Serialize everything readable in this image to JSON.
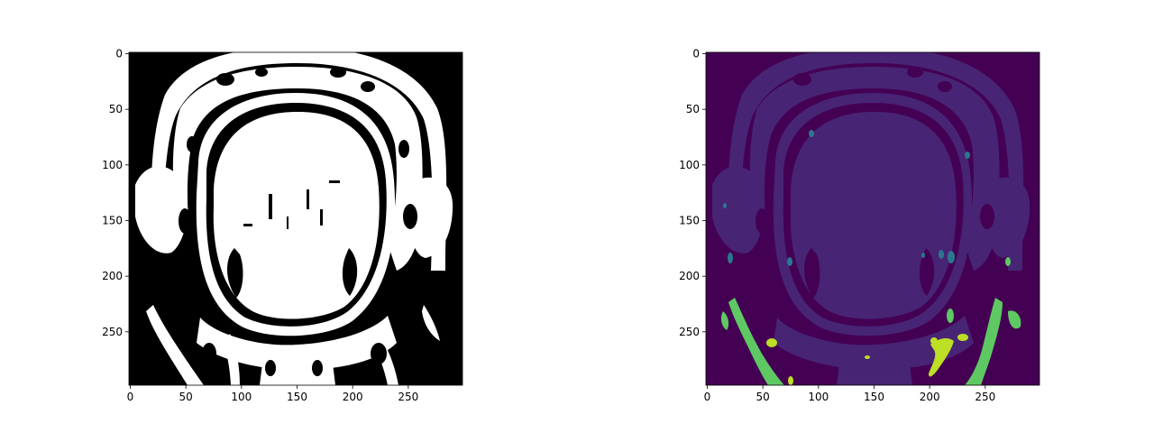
{
  "figure": {
    "background": "#ffffff"
  },
  "chart_data": [
    {
      "type": "heatmap",
      "colormap": "gray",
      "colors": {
        "low": "#000000",
        "high": "#ffffff"
      },
      "image_size": [
        300,
        300
      ],
      "xlim": [
        0,
        300
      ],
      "ylim": [
        300,
        0
      ],
      "y_inverted": true,
      "grid": false,
      "xticks": [
        0,
        50,
        100,
        150,
        200,
        250
      ],
      "yticks": [
        0,
        50,
        100,
        150,
        200,
        250
      ],
      "xlabel": "",
      "ylabel": "",
      "title": ""
    },
    {
      "type": "heatmap",
      "colormap": "viridis",
      "colors": {
        "background": "#440154",
        "class_1": "#482475",
        "class_2": "#2a788e",
        "class_3": "#5ec962",
        "class_4": "#bddf26"
      },
      "image_size": [
        300,
        300
      ],
      "xlim": [
        0,
        300
      ],
      "ylim": [
        300,
        0
      ],
      "y_inverted": true,
      "grid": false,
      "xticks": [
        0,
        50,
        100,
        150,
        200,
        250
      ],
      "yticks": [
        0,
        50,
        100,
        150,
        200,
        250
      ],
      "xlabel": "",
      "ylabel": "",
      "title": ""
    }
  ]
}
